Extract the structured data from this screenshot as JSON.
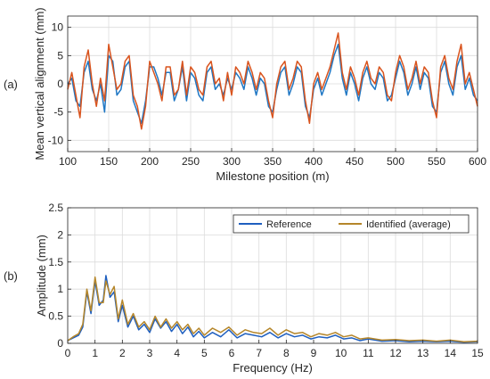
{
  "chart_data": [
    {
      "type": "line",
      "panel_label": "(a)",
      "xlabel": "Milestone position (m)",
      "ylabel": "Mean vertical alignment (mm)",
      "xlim": [
        100,
        600
      ],
      "ylim": [
        -12,
        12
      ],
      "xticks": [
        100,
        150,
        200,
        250,
        300,
        350,
        400,
        450,
        500,
        550,
        600
      ],
      "yticks": [
        -10,
        -5,
        0,
        5,
        10
      ],
      "grid": true,
      "legend": "none",
      "series": [
        {
          "color": "#1f77c4",
          "x": [
            100,
            105,
            110,
            115,
            120,
            125,
            130,
            135,
            140,
            145,
            150,
            155,
            160,
            165,
            170,
            175,
            180,
            185,
            190,
            195,
            200,
            205,
            210,
            215,
            220,
            225,
            230,
            235,
            240,
            245,
            250,
            255,
            260,
            265,
            270,
            275,
            280,
            285,
            290,
            295,
            300,
            305,
            310,
            315,
            320,
            325,
            330,
            335,
            340,
            345,
            350,
            355,
            360,
            365,
            370,
            375,
            380,
            385,
            390,
            395,
            400,
            405,
            410,
            415,
            420,
            425,
            430,
            435,
            440,
            445,
            450,
            455,
            460,
            465,
            470,
            475,
            480,
            485,
            490,
            495,
            500,
            505,
            510,
            515,
            520,
            525,
            530,
            535,
            540,
            545,
            550,
            555,
            560,
            565,
            570,
            575,
            580,
            585,
            590,
            595,
            600
          ],
          "y": [
            0,
            1,
            -3,
            -4,
            2,
            4,
            -1,
            -3,
            0,
            -5,
            5,
            4,
            -2,
            -1,
            3,
            4,
            -3,
            -5,
            -7,
            -3,
            3,
            3,
            1,
            -2,
            2,
            2,
            -3,
            -1,
            3,
            -3,
            2,
            1,
            -2,
            -3,
            2,
            3,
            -1,
            0,
            -2,
            1,
            -1,
            2,
            1,
            -1,
            3,
            1,
            -2,
            1,
            0,
            -4,
            -5,
            -1,
            2,
            3,
            -2,
            0,
            3,
            2,
            -4,
            -6,
            -1,
            1,
            -2,
            0,
            2,
            5,
            7,
            1,
            -2,
            2,
            0,
            -3,
            1,
            3,
            0,
            -1,
            2,
            1,
            -3,
            -2,
            1,
            4,
            2,
            -2,
            0,
            3,
            -1,
            2,
            1,
            -4,
            -5,
            2,
            4,
            0,
            -2,
            3,
            5,
            -1,
            1,
            -2,
            -3
          ]
        },
        {
          "color": "#d9541e",
          "x": [
            100,
            105,
            110,
            115,
            120,
            125,
            130,
            135,
            140,
            145,
            150,
            155,
            160,
            165,
            170,
            175,
            180,
            185,
            190,
            195,
            200,
            205,
            210,
            215,
            220,
            225,
            230,
            235,
            240,
            245,
            250,
            255,
            260,
            265,
            270,
            275,
            280,
            285,
            290,
            295,
            300,
            305,
            310,
            315,
            320,
            325,
            330,
            335,
            340,
            345,
            350,
            355,
            360,
            365,
            370,
            375,
            380,
            385,
            390,
            395,
            400,
            405,
            410,
            415,
            420,
            425,
            430,
            435,
            440,
            445,
            450,
            455,
            460,
            465,
            470,
            475,
            480,
            485,
            490,
            495,
            500,
            505,
            510,
            515,
            520,
            525,
            530,
            535,
            540,
            545,
            550,
            555,
            560,
            565,
            570,
            575,
            580,
            585,
            590,
            595,
            600
          ],
          "y": [
            -1,
            2,
            -2,
            -6,
            3,
            6,
            0,
            -4,
            1,
            -3,
            7,
            3,
            -1,
            0,
            4,
            5,
            -2,
            -4,
            -8,
            -4,
            4,
            2,
            0,
            -3,
            3,
            3,
            -2,
            -1,
            4,
            -2,
            3,
            2,
            -1,
            -2,
            3,
            4,
            0,
            1,
            -3,
            2,
            -2,
            3,
            2,
            0,
            4,
            2,
            -1,
            2,
            1,
            -3,
            -6,
            0,
            3,
            4,
            -1,
            1,
            4,
            3,
            -3,
            -7,
            0,
            2,
            -1,
            1,
            3,
            6,
            9,
            2,
            -1,
            3,
            1,
            -2,
            2,
            4,
            1,
            0,
            3,
            2,
            -2,
            -3,
            2,
            5,
            3,
            -1,
            1,
            4,
            0,
            3,
            2,
            -3,
            -6,
            3,
            5,
            1,
            -1,
            4,
            7,
            0,
            2,
            -1,
            -4
          ]
        }
      ]
    },
    {
      "type": "line",
      "panel_label": "(b)",
      "xlabel": "Frequency (Hz)",
      "ylabel": "Amplitude (mm)",
      "xlim": [
        0,
        15
      ],
      "ylim": [
        0,
        2.5
      ],
      "xticks": [
        0,
        1,
        2,
        3,
        4,
        5,
        6,
        7,
        8,
        9,
        10,
        11,
        12,
        13,
        14,
        15
      ],
      "yticks": [
        0,
        0.5,
        1,
        1.5,
        2,
        2.5
      ],
      "grid": true,
      "legend": "top-right",
      "series": [
        {
          "name": "Reference",
          "color": "#1f5fbf",
          "x": [
            0,
            0.2,
            0.4,
            0.55,
            0.7,
            0.85,
            1.0,
            1.15,
            1.3,
            1.4,
            1.55,
            1.7,
            1.85,
            2.0,
            2.2,
            2.4,
            2.6,
            2.8,
            3.0,
            3.2,
            3.4,
            3.6,
            3.8,
            4.0,
            4.2,
            4.4,
            4.6,
            4.8,
            5.0,
            5.3,
            5.6,
            5.9,
            6.2,
            6.5,
            6.8,
            7.1,
            7.4,
            7.7,
            8.0,
            8.3,
            8.6,
            8.9,
            9.2,
            9.5,
            9.8,
            10.1,
            10.4,
            10.7,
            11.0,
            11.5,
            12.0,
            12.5,
            13.0,
            13.5,
            14.0,
            14.5,
            15.0
          ],
          "y": [
            0.05,
            0.1,
            0.15,
            0.3,
            0.95,
            0.55,
            1.15,
            0.7,
            0.8,
            1.25,
            0.85,
            0.95,
            0.4,
            0.7,
            0.3,
            0.5,
            0.25,
            0.35,
            0.2,
            0.45,
            0.28,
            0.4,
            0.22,
            0.35,
            0.18,
            0.3,
            0.12,
            0.22,
            0.1,
            0.2,
            0.12,
            0.25,
            0.1,
            0.18,
            0.15,
            0.12,
            0.2,
            0.1,
            0.18,
            0.12,
            0.15,
            0.08,
            0.12,
            0.1,
            0.15,
            0.08,
            0.1,
            0.05,
            0.08,
            0.04,
            0.05,
            0.03,
            0.04,
            0.03,
            0.04,
            0.02,
            0.03
          ]
        },
        {
          "name": "Identified (average)",
          "color": "#b5862a",
          "x": [
            0,
            0.2,
            0.4,
            0.55,
            0.7,
            0.85,
            1.0,
            1.15,
            1.3,
            1.4,
            1.55,
            1.7,
            1.85,
            2.0,
            2.2,
            2.4,
            2.6,
            2.8,
            3.0,
            3.2,
            3.4,
            3.6,
            3.8,
            4.0,
            4.2,
            4.4,
            4.6,
            4.8,
            5.0,
            5.3,
            5.6,
            5.9,
            6.2,
            6.5,
            6.8,
            7.1,
            7.4,
            7.7,
            8.0,
            8.3,
            8.6,
            8.9,
            9.2,
            9.5,
            9.8,
            10.1,
            10.4,
            10.7,
            11.0,
            11.5,
            12.0,
            12.5,
            13.0,
            13.5,
            14.0,
            14.5,
            15.0
          ],
          "y": [
            0.05,
            0.12,
            0.18,
            0.35,
            1.0,
            0.6,
            1.22,
            0.75,
            0.75,
            1.15,
            0.9,
            1.05,
            0.45,
            0.8,
            0.35,
            0.55,
            0.3,
            0.4,
            0.25,
            0.5,
            0.3,
            0.45,
            0.28,
            0.4,
            0.25,
            0.35,
            0.18,
            0.28,
            0.15,
            0.28,
            0.2,
            0.3,
            0.15,
            0.25,
            0.2,
            0.18,
            0.28,
            0.15,
            0.25,
            0.18,
            0.2,
            0.12,
            0.18,
            0.15,
            0.2,
            0.12,
            0.15,
            0.08,
            0.1,
            0.06,
            0.07,
            0.05,
            0.06,
            0.04,
            0.06,
            0.03,
            0.04
          ]
        }
      ]
    }
  ]
}
